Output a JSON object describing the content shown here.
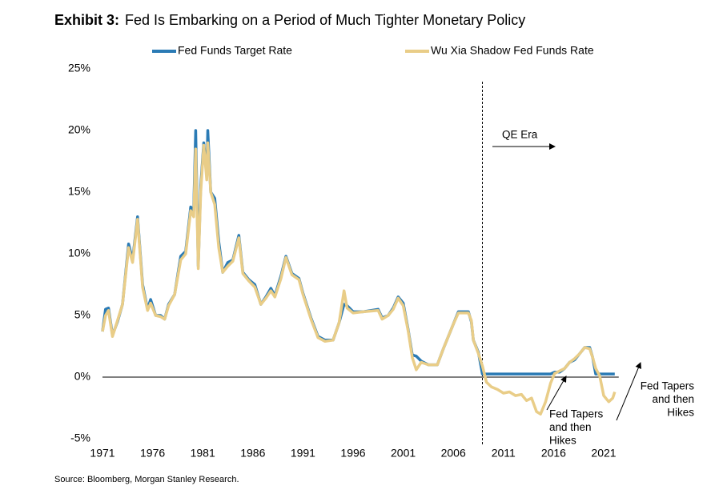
{
  "chart_data": {
    "type": "line",
    "title_label": "Exhibit 3:",
    "title": "Fed Is Embarking on a Period of Much Tighter Monetary Policy",
    "source": "Source: Bloomberg, Morgan Stanley Research.",
    "x": [
      1971.0,
      1971.3,
      1971.6,
      1972.0,
      1972.5,
      1973.0,
      1973.6,
      1974.0,
      1974.5,
      1975.0,
      1975.5,
      1975.8,
      1976.3,
      1976.8,
      1977.2,
      1977.6,
      1978.2,
      1978.8,
      1979.3,
      1979.8,
      1980.1,
      1980.3,
      1980.55,
      1980.8,
      1981.1,
      1981.4,
      1981.5,
      1981.8,
      1982.2,
      1982.6,
      1983.0,
      1983.5,
      1984.0,
      1984.6,
      1985.0,
      1985.6,
      1986.2,
      1986.8,
      1987.3,
      1987.8,
      1988.2,
      1988.8,
      1989.3,
      1989.9,
      1990.6,
      1991.0,
      1991.8,
      1992.5,
      1993.2,
      1994.0,
      1994.6,
      1995.1,
      1995.4,
      1996.0,
      1997.0,
      1998.5,
      1998.9,
      1999.5,
      2000.0,
      2000.5,
      2001.0,
      2001.5,
      2001.9,
      2002.3,
      2002.8,
      2003.5,
      2004.4,
      2005.0,
      2006.0,
      2006.5,
      2007.5,
      2007.8,
      2008.0,
      2008.5,
      2008.9,
      2009.3,
      2009.8,
      2010.4,
      2011.0,
      2011.6,
      2012.2,
      2012.8,
      2013.3,
      2013.8,
      2014.3,
      2014.7,
      2015.2,
      2015.7,
      2016.1,
      2016.6,
      2017.1,
      2017.6,
      2018.1,
      2018.6,
      2019.1,
      2019.6,
      2019.9,
      2020.2,
      2020.6,
      2021.0,
      2021.5,
      2021.9,
      2022.1
    ],
    "series": [
      {
        "name": "Fed Funds Target Rate",
        "color": "#2b7bb5",
        "values": [
          3.7,
          5.5,
          5.6,
          3.4,
          4.5,
          5.9,
          10.8,
          9.5,
          13.0,
          7.5,
          5.5,
          6.3,
          5.0,
          5.0,
          4.7,
          5.9,
          6.7,
          9.8,
          10.2,
          13.8,
          13.5,
          20.0,
          9.0,
          15.5,
          19.0,
          16.5,
          20.0,
          15.0,
          14.5,
          11.0,
          8.5,
          9.3,
          9.5,
          11.5,
          8.5,
          7.9,
          7.5,
          5.9,
          6.5,
          7.2,
          6.6,
          8.2,
          9.8,
          8.4,
          8.0,
          6.8,
          4.8,
          3.3,
          3.0,
          3.0,
          4.4,
          5.9,
          5.8,
          5.3,
          5.3,
          5.5,
          4.8,
          5.0,
          5.6,
          6.5,
          6.0,
          3.8,
          1.8,
          1.7,
          1.3,
          1.0,
          1.0,
          2.3,
          4.3,
          5.3,
          5.3,
          4.5,
          3.0,
          2.0,
          0.25,
          0.25,
          0.25,
          0.25,
          0.25,
          0.25,
          0.25,
          0.25,
          0.25,
          0.25,
          0.25,
          0.25,
          0.25,
          0.25,
          0.4,
          0.4,
          0.7,
          1.2,
          1.4,
          1.9,
          2.4,
          2.4,
          1.6,
          0.25,
          0.25,
          0.25,
          0.25,
          0.25,
          0.25
        ]
      },
      {
        "name": "Wu Xia Shadow Fed Funds Rate",
        "color": "#e9cd88",
        "values": [
          3.7,
          5.0,
          5.4,
          3.3,
          4.6,
          5.9,
          10.5,
          9.3,
          12.8,
          7.3,
          5.4,
          6.0,
          5.0,
          4.9,
          4.7,
          5.8,
          6.7,
          9.5,
          10.0,
          13.5,
          13.0,
          18.5,
          8.8,
          15.0,
          18.8,
          16.0,
          19.0,
          15.0,
          14.0,
          10.5,
          8.5,
          9.0,
          9.4,
          11.3,
          8.4,
          7.8,
          7.3,
          5.9,
          6.4,
          7.0,
          6.5,
          8.0,
          9.7,
          8.3,
          7.9,
          6.7,
          4.7,
          3.2,
          2.9,
          3.0,
          4.4,
          7.0,
          5.6,
          5.2,
          5.3,
          5.4,
          4.7,
          5.0,
          5.5,
          6.4,
          5.8,
          3.7,
          1.6,
          0.6,
          1.2,
          1.0,
          1.0,
          2.3,
          4.3,
          5.2,
          5.2,
          4.6,
          3.0,
          1.9,
          0.9,
          -0.4,
          -0.8,
          -1.0,
          -1.3,
          -1.2,
          -1.5,
          -1.4,
          -1.9,
          -1.7,
          -2.8,
          -3.0,
          -2.0,
          -0.5,
          0.3,
          0.5,
          0.7,
          1.2,
          1.5,
          1.9,
          2.4,
          2.3,
          1.6,
          0.7,
          0.1,
          -1.5,
          -2.0,
          -1.7,
          -1.2
        ]
      }
    ],
    "xlim": [
      1971,
      2022.5
    ],
    "xticks": [
      1971,
      1976,
      1981,
      1986,
      1991,
      1996,
      2001,
      2006,
      2011,
      2016,
      2021
    ],
    "ylim": [
      -5,
      25
    ],
    "yticks": [
      {
        "value": -5,
        "label": "-5%"
      },
      {
        "value": 0,
        "label": "0%"
      },
      {
        "value": 5,
        "label": "5%"
      },
      {
        "value": 10,
        "label": "10%"
      },
      {
        "value": 15,
        "label": "15%"
      },
      {
        "value": 20,
        "label": "20%"
      },
      {
        "value": 25,
        "label": "25%"
      }
    ],
    "grid": false,
    "qe_start": 2008.9,
    "annotations": [
      {
        "text": [
          "QE Era"
        ]
      },
      {
        "text": [
          "Fed Tapers",
          "and then",
          "Hikes"
        ]
      },
      {
        "text": [
          "Fed Tapers",
          "and then",
          "Hikes"
        ]
      }
    ]
  }
}
